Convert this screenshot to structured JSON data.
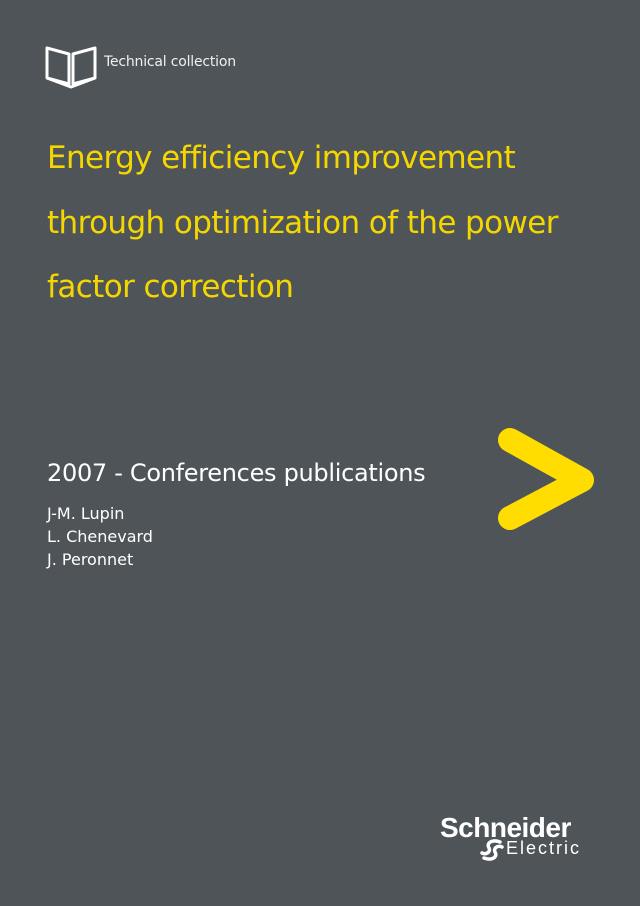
{
  "header": {
    "icon": "open-book-icon",
    "label": "Technical collection"
  },
  "title": {
    "lines": [
      "Energy efficiency improvement",
      "through optimization of the power",
      "factor correction"
    ]
  },
  "subtitle": "2007 - Conferences publications",
  "authors": [
    "J-M. Lupin",
    "L. Chenevard",
    "J. Peronnet"
  ],
  "logo": {
    "name": "Schneider",
    "sub": "Electric"
  },
  "colors": {
    "background": "#4f5459",
    "accent": "#ffdd00",
    "title": "#f5d700"
  }
}
